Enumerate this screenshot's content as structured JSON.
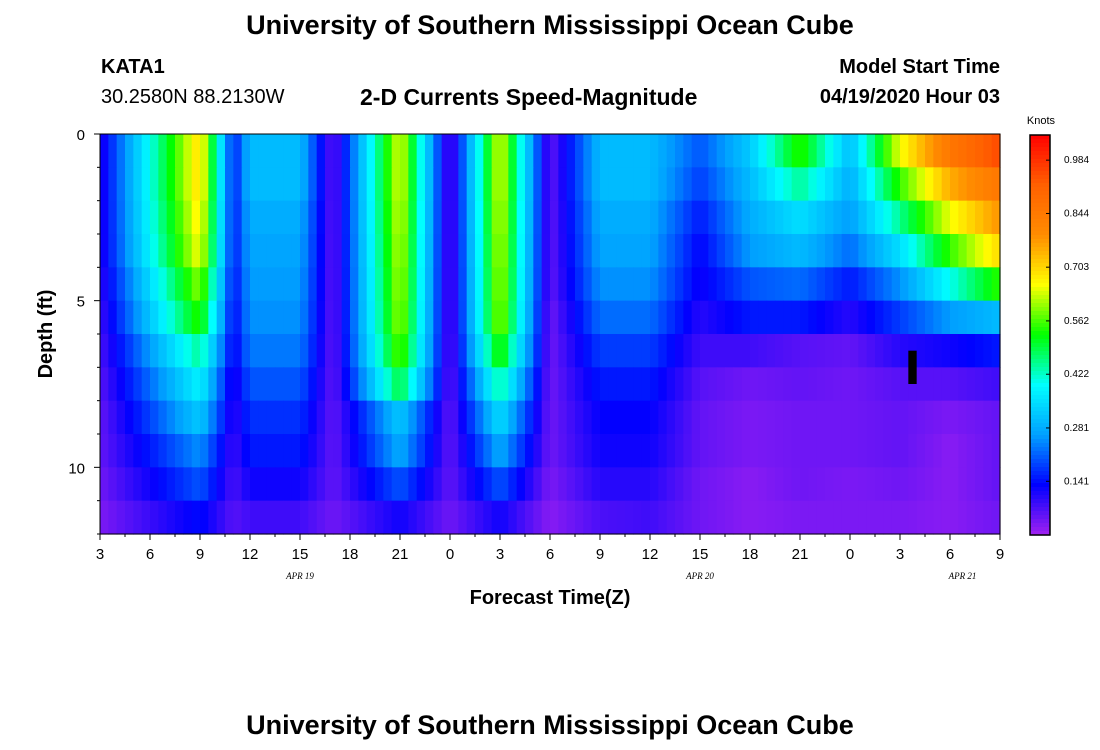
{
  "header": {
    "title": "University of Southern Mississippi Ocean Cube",
    "station": "KATA1",
    "coords": "30.2580N 88.2130W",
    "subtitle": "2-D Currents Speed-Magnitude",
    "model_label": "Model Start Time",
    "model_time": "04/19/2020 Hour 03"
  },
  "footer": {
    "title": "University of Southern Mississippi Ocean Cube"
  },
  "chart_data": {
    "type": "heatmap",
    "title": "2-D Currents Speed-Magnitude",
    "xlabel": "Forecast Time(Z)",
    "ylabel": "Depth (ft)",
    "colorbar_label": "Knots",
    "x_range_hours": [
      3,
      57
    ],
    "ylim": [
      12,
      0
    ],
    "x_tick_labels": [
      "3",
      "6",
      "9",
      "12",
      "15",
      "18",
      "21",
      "0",
      "3",
      "6",
      "9",
      "12",
      "15",
      "18",
      "21",
      "0",
      "3",
      "6",
      "9"
    ],
    "y_tick_labels": [
      "0",
      "5",
      "10"
    ],
    "y_ticks": [
      0,
      5,
      10
    ],
    "date_labels": [
      "APR 19",
      "APR 20",
      "APR 21"
    ],
    "colorbar_ticks": [
      "0.984",
      "0.844",
      "0.703",
      "0.562",
      "0.422",
      "0.281",
      "0.141"
    ],
    "colorbar_range": [
      0,
      1.05
    ],
    "cmap_colors": [
      "#a020f0",
      "#0000ff",
      "#00a0ff",
      "#00ffff",
      "#00ff00",
      "#ffff00",
      "#ff8c00",
      "#ff6000",
      "#ff0000"
    ],
    "depth_levels": [
      0.5,
      1.5,
      2.5,
      3.5,
      4.5,
      5.5,
      6.5,
      7.5,
      8.5,
      9.5,
      10.5,
      11.5
    ],
    "time_points": [
      3,
      9,
      11,
      12,
      15,
      17,
      21,
      24,
      27,
      30,
      33,
      36,
      39,
      42,
      45,
      48,
      51,
      54,
      57
    ],
    "speed_by_depth": [
      [
        0.1,
        0.7,
        0.15,
        0.3,
        0.3,
        0.05,
        0.65,
        0.05,
        0.65,
        0.05,
        0.3,
        0.3,
        0.2,
        0.32,
        0.55,
        0.3,
        0.65,
        0.85,
        0.95
      ],
      [
        0.1,
        0.7,
        0.15,
        0.3,
        0.3,
        0.05,
        0.65,
        0.05,
        0.65,
        0.05,
        0.3,
        0.3,
        0.18,
        0.3,
        0.45,
        0.28,
        0.55,
        0.75,
        0.85
      ],
      [
        0.1,
        0.68,
        0.15,
        0.28,
        0.28,
        0.05,
        0.64,
        0.05,
        0.64,
        0.05,
        0.28,
        0.28,
        0.15,
        0.28,
        0.35,
        0.26,
        0.45,
        0.65,
        0.78
      ],
      [
        0.1,
        0.66,
        0.15,
        0.27,
        0.27,
        0.05,
        0.63,
        0.05,
        0.63,
        0.05,
        0.27,
        0.27,
        0.13,
        0.26,
        0.3,
        0.22,
        0.35,
        0.55,
        0.7
      ],
      [
        0.09,
        0.6,
        0.14,
        0.26,
        0.26,
        0.05,
        0.62,
        0.05,
        0.62,
        0.05,
        0.25,
        0.25,
        0.12,
        0.2,
        0.22,
        0.15,
        0.25,
        0.4,
        0.55
      ],
      [
        0.08,
        0.55,
        0.13,
        0.25,
        0.25,
        0.05,
        0.61,
        0.05,
        0.61,
        0.04,
        0.22,
        0.22,
        0.1,
        0.15,
        0.15,
        0.1,
        0.18,
        0.26,
        0.3
      ],
      [
        0.07,
        0.45,
        0.12,
        0.23,
        0.23,
        0.05,
        0.58,
        0.05,
        0.55,
        0.04,
        0.18,
        0.18,
        0.08,
        0.08,
        0.06,
        0.05,
        0.1,
        0.12,
        0.15
      ],
      [
        0.06,
        0.38,
        0.1,
        0.2,
        0.2,
        0.05,
        0.5,
        0.05,
        0.45,
        0.04,
        0.15,
        0.15,
        0.06,
        0.04,
        0.05,
        0.04,
        0.06,
        0.06,
        0.08
      ],
      [
        0.05,
        0.32,
        0.09,
        0.17,
        0.17,
        0.05,
        0.32,
        0.05,
        0.35,
        0.04,
        0.13,
        0.13,
        0.05,
        0.03,
        0.04,
        0.04,
        0.05,
        0.03,
        0.05
      ],
      [
        0.05,
        0.25,
        0.08,
        0.15,
        0.15,
        0.05,
        0.28,
        0.05,
        0.28,
        0.04,
        0.12,
        0.12,
        0.05,
        0.03,
        0.04,
        0.04,
        0.05,
        0.02,
        0.05
      ],
      [
        0.04,
        0.2,
        0.07,
        0.12,
        0.12,
        0.05,
        0.2,
        0.05,
        0.2,
        0.03,
        0.1,
        0.1,
        0.04,
        0.02,
        0.04,
        0.03,
        0.04,
        0.02,
        0.05
      ],
      [
        0.03,
        0.14,
        0.06,
        0.08,
        0.08,
        0.04,
        0.12,
        0.04,
        0.12,
        0.02,
        0.07,
        0.08,
        0.04,
        0.02,
        0.03,
        0.03,
        0.03,
        0.02,
        0.04
      ]
    ],
    "missing_cell": {
      "time_hours": [
        51.5,
        52
      ],
      "depth": [
        6.5,
        7.5
      ]
    }
  }
}
